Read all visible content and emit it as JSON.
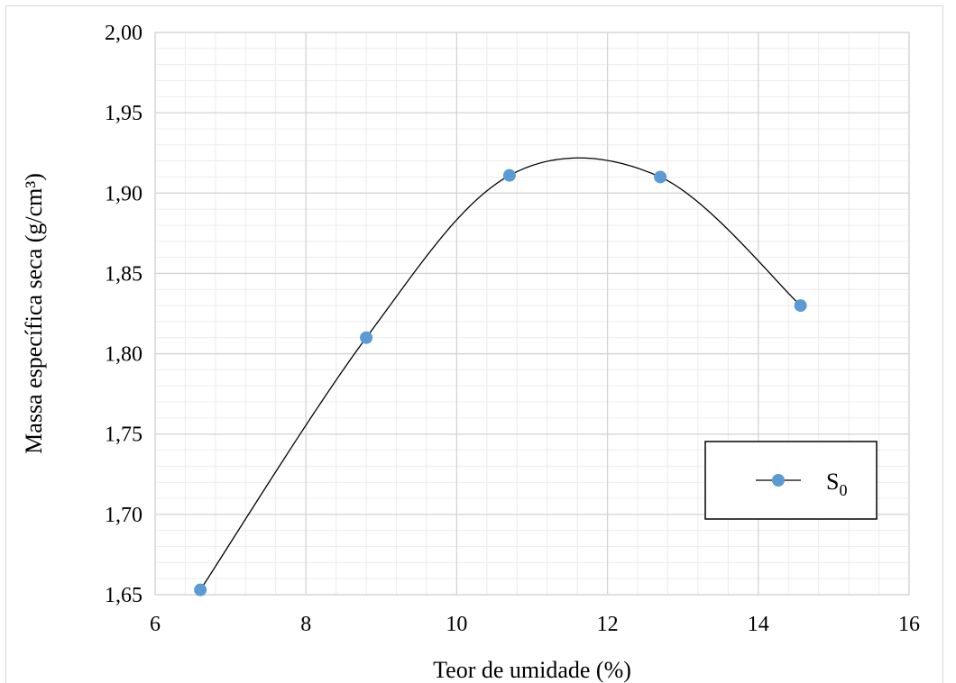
{
  "chart_data": {
    "type": "scatter",
    "title": "",
    "xlabel": "Teor de umidade (%)",
    "ylabel": "Massa específica seca (g/cm³)",
    "xlim": [
      6,
      16
    ],
    "ylim": [
      1.65,
      2.0
    ],
    "x_ticks": [
      6,
      8,
      10,
      12,
      14,
      16
    ],
    "x_tick_labels": [
      "6",
      "8",
      "10",
      "12",
      "14",
      "16"
    ],
    "y_ticks": [
      1.65,
      1.7,
      1.75,
      1.8,
      1.85,
      1.9,
      1.95,
      2.0
    ],
    "y_tick_labels": [
      "1,65",
      "1,70",
      "1,75",
      "1,80",
      "1,85",
      "1,90",
      "1,95",
      "2,00"
    ],
    "grid": true,
    "minor_grid": true,
    "smooth_line": true,
    "legend_position": "lower-right",
    "series": [
      {
        "name": "S",
        "name_subscript": "0",
        "x": [
          6.6,
          8.8,
          10.7,
          12.7,
          14.56
        ],
        "y": [
          1.653,
          1.81,
          1.911,
          1.91,
          1.83
        ],
        "marker_color": "#5b9bd5",
        "line_color": "#000000"
      }
    ]
  }
}
